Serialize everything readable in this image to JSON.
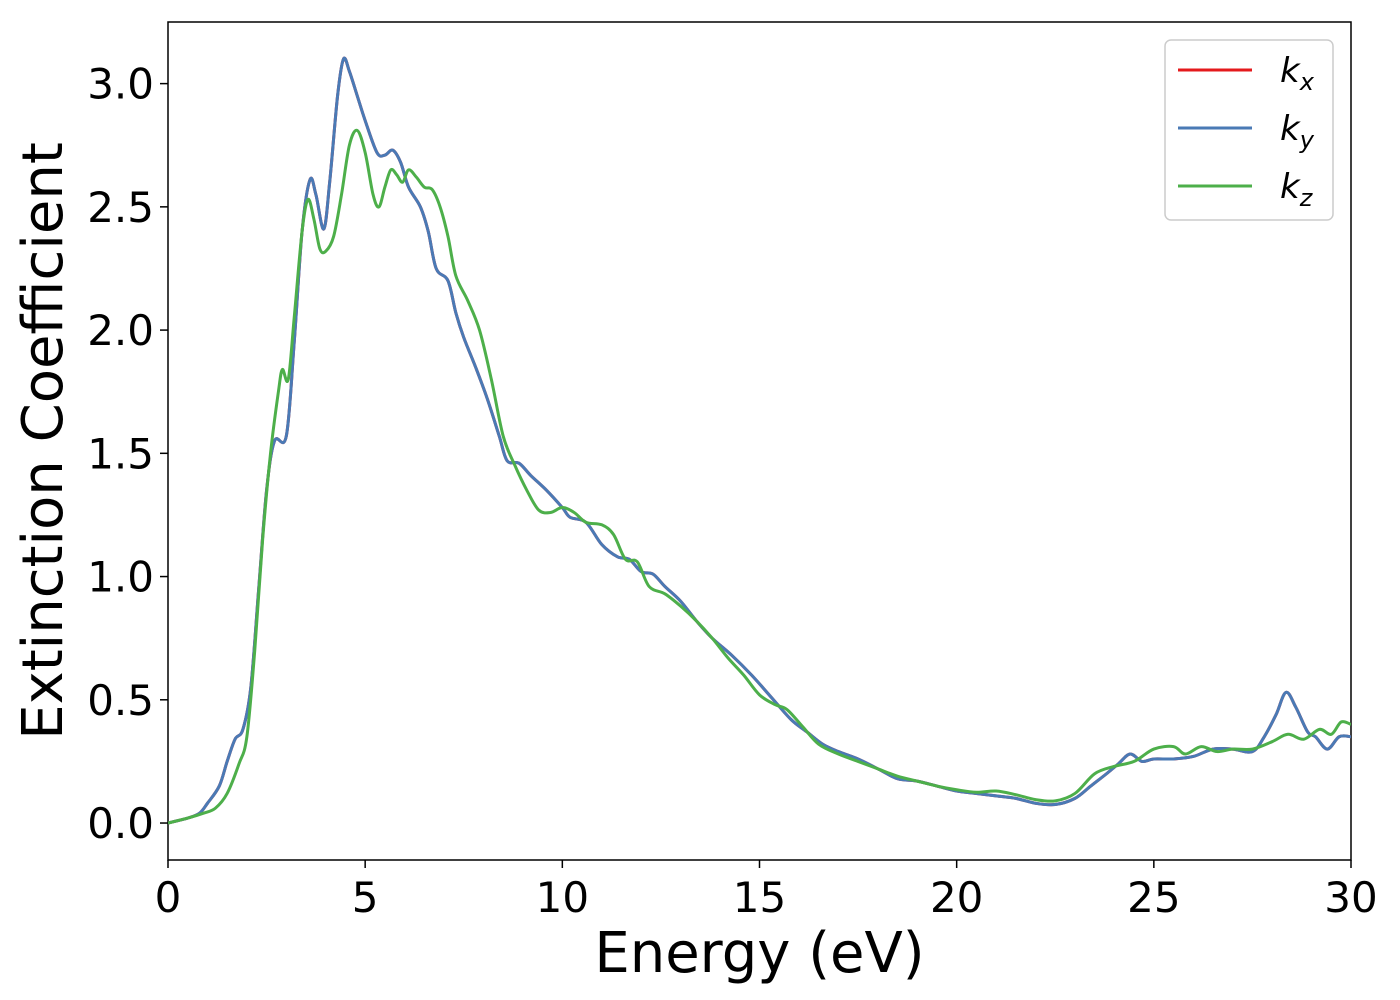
{
  "chart_data": {
    "type": "line",
    "title": "",
    "xlabel": "Energy (eV)",
    "ylabel": "Extinction Coefficient",
    "xlim": [
      0,
      30
    ],
    "ylim": [
      -0.15,
      3.25
    ],
    "xticks": [
      "0",
      "5",
      "10",
      "15",
      "20",
      "25",
      "30"
    ],
    "yticks": [
      "0.0",
      "0.5",
      "1.0",
      "1.5",
      "2.0",
      "2.5",
      "3.0"
    ],
    "grid": false,
    "legend_position": "top-right",
    "series": [
      {
        "name": "k",
        "subscript": "x",
        "color": "#e41a1c",
        "points": [
          [
            0,
            0.0
          ],
          [
            0.5,
            0.02
          ],
          [
            0.8,
            0.04
          ],
          [
            1.0,
            0.08
          ],
          [
            1.3,
            0.15
          ],
          [
            1.5,
            0.25
          ],
          [
            1.7,
            0.34
          ],
          [
            1.9,
            0.38
          ],
          [
            2.1,
            0.55
          ],
          [
            2.3,
            0.95
          ],
          [
            2.5,
            1.35
          ],
          [
            2.7,
            1.55
          ],
          [
            3.0,
            1.57
          ],
          [
            3.2,
            1.95
          ],
          [
            3.4,
            2.4
          ],
          [
            3.6,
            2.61
          ],
          [
            3.75,
            2.55
          ],
          [
            3.95,
            2.41
          ],
          [
            4.1,
            2.6
          ],
          [
            4.3,
            2.95
          ],
          [
            4.45,
            3.1
          ],
          [
            4.6,
            3.05
          ],
          [
            4.8,
            2.95
          ],
          [
            5.0,
            2.85
          ],
          [
            5.3,
            2.72
          ],
          [
            5.5,
            2.71
          ],
          [
            5.7,
            2.73
          ],
          [
            5.9,
            2.68
          ],
          [
            6.1,
            2.58
          ],
          [
            6.4,
            2.5
          ],
          [
            6.6,
            2.4
          ],
          [
            6.8,
            2.25
          ],
          [
            7.1,
            2.2
          ],
          [
            7.3,
            2.07
          ],
          [
            7.5,
            1.97
          ],
          [
            7.8,
            1.85
          ],
          [
            8.1,
            1.72
          ],
          [
            8.4,
            1.57
          ],
          [
            8.6,
            1.47
          ],
          [
            8.9,
            1.46
          ],
          [
            9.2,
            1.41
          ],
          [
            9.6,
            1.35
          ],
          [
            10.0,
            1.28
          ],
          [
            10.2,
            1.24
          ],
          [
            10.6,
            1.22
          ],
          [
            11.0,
            1.13
          ],
          [
            11.4,
            1.08
          ],
          [
            11.7,
            1.07
          ],
          [
            12.0,
            1.02
          ],
          [
            12.3,
            1.01
          ],
          [
            12.6,
            0.96
          ],
          [
            13.0,
            0.9
          ],
          [
            13.4,
            0.82
          ],
          [
            13.8,
            0.75
          ],
          [
            14.3,
            0.68
          ],
          [
            14.8,
            0.6
          ],
          [
            15.3,
            0.51
          ],
          [
            15.8,
            0.42
          ],
          [
            16.2,
            0.37
          ],
          [
            16.6,
            0.32
          ],
          [
            17.0,
            0.29
          ],
          [
            17.5,
            0.26
          ],
          [
            18.0,
            0.22
          ],
          [
            18.5,
            0.18
          ],
          [
            19.0,
            0.17
          ],
          [
            19.5,
            0.15
          ],
          [
            20.0,
            0.13
          ],
          [
            20.5,
            0.12
          ],
          [
            21.0,
            0.11
          ],
          [
            21.5,
            0.1
          ],
          [
            22.0,
            0.08
          ],
          [
            22.5,
            0.075
          ],
          [
            23.0,
            0.1
          ],
          [
            23.4,
            0.15
          ],
          [
            23.8,
            0.2
          ],
          [
            24.1,
            0.24
          ],
          [
            24.4,
            0.28
          ],
          [
            24.7,
            0.25
          ],
          [
            25.0,
            0.26
          ],
          [
            25.5,
            0.26
          ],
          [
            26.0,
            0.27
          ],
          [
            26.5,
            0.3
          ],
          [
            27.0,
            0.3
          ],
          [
            27.5,
            0.29
          ],
          [
            27.8,
            0.35
          ],
          [
            28.1,
            0.44
          ],
          [
            28.35,
            0.53
          ],
          [
            28.6,
            0.47
          ],
          [
            28.9,
            0.37
          ],
          [
            29.1,
            0.35
          ],
          [
            29.4,
            0.3
          ],
          [
            29.7,
            0.35
          ],
          [
            30.0,
            0.35
          ]
        ]
      },
      {
        "name": "k",
        "subscript": "y",
        "color": "#4a7ab5",
        "points": [
          [
            0,
            0.0
          ],
          [
            0.5,
            0.02
          ],
          [
            0.8,
            0.04
          ],
          [
            1.0,
            0.08
          ],
          [
            1.3,
            0.15
          ],
          [
            1.5,
            0.25
          ],
          [
            1.7,
            0.34
          ],
          [
            1.9,
            0.38
          ],
          [
            2.1,
            0.55
          ],
          [
            2.3,
            0.95
          ],
          [
            2.5,
            1.35
          ],
          [
            2.7,
            1.55
          ],
          [
            3.0,
            1.57
          ],
          [
            3.2,
            1.95
          ],
          [
            3.4,
            2.4
          ],
          [
            3.6,
            2.61
          ],
          [
            3.75,
            2.55
          ],
          [
            3.95,
            2.41
          ],
          [
            4.1,
            2.6
          ],
          [
            4.3,
            2.95
          ],
          [
            4.45,
            3.1
          ],
          [
            4.6,
            3.05
          ],
          [
            4.8,
            2.95
          ],
          [
            5.0,
            2.85
          ],
          [
            5.3,
            2.72
          ],
          [
            5.5,
            2.71
          ],
          [
            5.7,
            2.73
          ],
          [
            5.9,
            2.68
          ],
          [
            6.1,
            2.58
          ],
          [
            6.4,
            2.5
          ],
          [
            6.6,
            2.4
          ],
          [
            6.8,
            2.25
          ],
          [
            7.1,
            2.2
          ],
          [
            7.3,
            2.07
          ],
          [
            7.5,
            1.97
          ],
          [
            7.8,
            1.85
          ],
          [
            8.1,
            1.72
          ],
          [
            8.4,
            1.57
          ],
          [
            8.6,
            1.47
          ],
          [
            8.9,
            1.46
          ],
          [
            9.2,
            1.41
          ],
          [
            9.6,
            1.35
          ],
          [
            10.0,
            1.28
          ],
          [
            10.2,
            1.24
          ],
          [
            10.6,
            1.22
          ],
          [
            11.0,
            1.13
          ],
          [
            11.4,
            1.08
          ],
          [
            11.7,
            1.07
          ],
          [
            12.0,
            1.02
          ],
          [
            12.3,
            1.01
          ],
          [
            12.6,
            0.96
          ],
          [
            13.0,
            0.9
          ],
          [
            13.4,
            0.82
          ],
          [
            13.8,
            0.75
          ],
          [
            14.3,
            0.68
          ],
          [
            14.8,
            0.6
          ],
          [
            15.3,
            0.51
          ],
          [
            15.8,
            0.42
          ],
          [
            16.2,
            0.37
          ],
          [
            16.6,
            0.32
          ],
          [
            17.0,
            0.29
          ],
          [
            17.5,
            0.26
          ],
          [
            18.0,
            0.22
          ],
          [
            18.5,
            0.18
          ],
          [
            19.0,
            0.17
          ],
          [
            19.5,
            0.15
          ],
          [
            20.0,
            0.13
          ],
          [
            20.5,
            0.12
          ],
          [
            21.0,
            0.11
          ],
          [
            21.5,
            0.1
          ],
          [
            22.0,
            0.08
          ],
          [
            22.5,
            0.075
          ],
          [
            23.0,
            0.1
          ],
          [
            23.4,
            0.15
          ],
          [
            23.8,
            0.2
          ],
          [
            24.1,
            0.24
          ],
          [
            24.4,
            0.28
          ],
          [
            24.7,
            0.25
          ],
          [
            25.0,
            0.26
          ],
          [
            25.5,
            0.26
          ],
          [
            26.0,
            0.27
          ],
          [
            26.5,
            0.3
          ],
          [
            27.0,
            0.3
          ],
          [
            27.5,
            0.29
          ],
          [
            27.8,
            0.35
          ],
          [
            28.1,
            0.44
          ],
          [
            28.35,
            0.53
          ],
          [
            28.6,
            0.47
          ],
          [
            28.9,
            0.37
          ],
          [
            29.1,
            0.35
          ],
          [
            29.4,
            0.3
          ],
          [
            29.7,
            0.35
          ],
          [
            30.0,
            0.35
          ]
        ]
      },
      {
        "name": "k",
        "subscript": "z",
        "color": "#4daf4a",
        "points": [
          [
            0,
            0.0
          ],
          [
            0.5,
            0.02
          ],
          [
            0.9,
            0.04
          ],
          [
            1.2,
            0.06
          ],
          [
            1.5,
            0.12
          ],
          [
            1.8,
            0.24
          ],
          [
            2.0,
            0.35
          ],
          [
            2.2,
            0.7
          ],
          [
            2.4,
            1.15
          ],
          [
            2.6,
            1.5
          ],
          [
            2.8,
            1.75
          ],
          [
            2.9,
            1.84
          ],
          [
            3.05,
            1.8
          ],
          [
            3.2,
            2.05
          ],
          [
            3.4,
            2.4
          ],
          [
            3.55,
            2.53
          ],
          [
            3.7,
            2.45
          ],
          [
            3.85,
            2.33
          ],
          [
            4.0,
            2.32
          ],
          [
            4.2,
            2.38
          ],
          [
            4.4,
            2.55
          ],
          [
            4.6,
            2.75
          ],
          [
            4.8,
            2.81
          ],
          [
            5.0,
            2.72
          ],
          [
            5.2,
            2.55
          ],
          [
            5.35,
            2.5
          ],
          [
            5.5,
            2.58
          ],
          [
            5.65,
            2.65
          ],
          [
            5.8,
            2.63
          ],
          [
            5.95,
            2.6
          ],
          [
            6.1,
            2.65
          ],
          [
            6.3,
            2.62
          ],
          [
            6.5,
            2.58
          ],
          [
            6.7,
            2.57
          ],
          [
            6.9,
            2.5
          ],
          [
            7.1,
            2.38
          ],
          [
            7.3,
            2.22
          ],
          [
            7.6,
            2.12
          ],
          [
            7.9,
            2.0
          ],
          [
            8.2,
            1.8
          ],
          [
            8.5,
            1.57
          ],
          [
            8.8,
            1.45
          ],
          [
            9.1,
            1.35
          ],
          [
            9.4,
            1.27
          ],
          [
            9.7,
            1.26
          ],
          [
            10.0,
            1.28
          ],
          [
            10.3,
            1.26
          ],
          [
            10.6,
            1.22
          ],
          [
            11.0,
            1.21
          ],
          [
            11.3,
            1.17
          ],
          [
            11.6,
            1.07
          ],
          [
            11.9,
            1.06
          ],
          [
            12.2,
            0.96
          ],
          [
            12.6,
            0.93
          ],
          [
            13.0,
            0.88
          ],
          [
            13.4,
            0.82
          ],
          [
            13.8,
            0.75
          ],
          [
            14.2,
            0.67
          ],
          [
            14.6,
            0.6
          ],
          [
            15.0,
            0.52
          ],
          [
            15.4,
            0.48
          ],
          [
            15.7,
            0.46
          ],
          [
            16.1,
            0.39
          ],
          [
            16.5,
            0.32
          ],
          [
            17.0,
            0.28
          ],
          [
            17.5,
            0.25
          ],
          [
            18.0,
            0.22
          ],
          [
            18.5,
            0.19
          ],
          [
            19.0,
            0.17
          ],
          [
            19.5,
            0.15
          ],
          [
            20.0,
            0.135
          ],
          [
            20.5,
            0.125
          ],
          [
            21.0,
            0.13
          ],
          [
            21.5,
            0.115
          ],
          [
            22.0,
            0.095
          ],
          [
            22.5,
            0.09
          ],
          [
            23.0,
            0.12
          ],
          [
            23.5,
            0.2
          ],
          [
            24.0,
            0.23
          ],
          [
            24.5,
            0.25
          ],
          [
            25.0,
            0.3
          ],
          [
            25.5,
            0.31
          ],
          [
            25.8,
            0.28
          ],
          [
            26.2,
            0.31
          ],
          [
            26.6,
            0.29
          ],
          [
            27.0,
            0.3
          ],
          [
            27.5,
            0.3
          ],
          [
            28.0,
            0.33
          ],
          [
            28.4,
            0.36
          ],
          [
            28.8,
            0.34
          ],
          [
            29.2,
            0.38
          ],
          [
            29.5,
            0.36
          ],
          [
            29.75,
            0.41
          ],
          [
            30.0,
            0.4
          ]
        ]
      }
    ]
  }
}
